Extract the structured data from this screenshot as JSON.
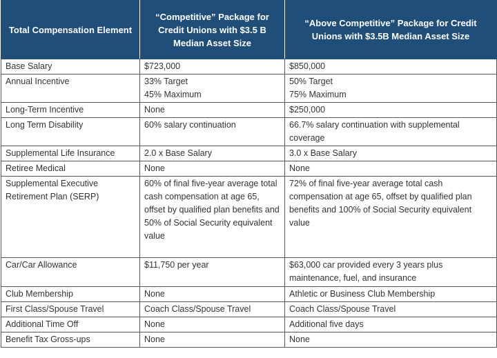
{
  "headers": [
    "Total Compensation Element",
    "“Competitive” Package for Credit Unions with $3.5 B Median Asset Size",
    "“Above Competitive” Package for Credit Unions with $3.5B Median Asset Size"
  ],
  "rows": [
    {
      "element": "Base Salary",
      "competitive": "$723,000",
      "above": "$850,000"
    },
    {
      "element": "Annual Incentive",
      "competitive": "33% Target\n45% Maximum",
      "above": "50% Target\n75% Maximum"
    },
    {
      "element": "Long-Term Incentive",
      "competitive": "None",
      "above": "$250,000"
    },
    {
      "element": "Long Term Disability",
      "competitive": "60% salary continuation",
      "above": "66.7% salary continuation with supplemental coverage"
    },
    {
      "element": "Supplemental Life Insurance",
      "competitive": "2.0 x Base Salary",
      "above": "3.0 x Base Salary"
    },
    {
      "element": "Retiree Medical",
      "competitive": "None",
      "above": "None"
    },
    {
      "element": "Supplemental Executive Retirement Plan (SERP)",
      "competitive": "60% of final five-year average total cash compensation at age 65, offset by qualified plan benefits and 50% of Social Security equivalent value",
      "above": "72% of final five-year average total cash compensation at age 65, offset by qualified plan benefits and 100% of Social Security equivalent value"
    },
    {
      "element": "Car/Car Allowance",
      "competitive": "$11,750 per year",
      "above": "$63,000 car provided every 3 years plus maintenance, fuel, and insurance"
    },
    {
      "element": "Club Membership",
      "competitive": "None",
      "above": "Athletic or Business Club Membership"
    },
    {
      "element": "First Class/Spouse Travel",
      "competitive": "Coach Class/Spouse Travel",
      "above": "Coach Class/Spouse Travel"
    },
    {
      "element": "Additional Time Off",
      "competitive": "None",
      "above": "Additional five days"
    },
    {
      "element": "Benefit Tax Gross-ups",
      "competitive": "None",
      "above": "None"
    }
  ]
}
